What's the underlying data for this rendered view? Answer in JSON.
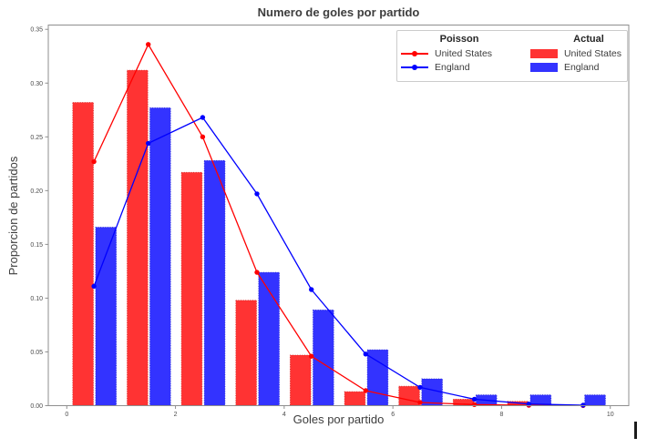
{
  "figure": {
    "title": "Numero de goles por partido",
    "xlabel": "Goles por partido",
    "ylabel": "Proporcion de partidos"
  },
  "chart_data": {
    "type": "bar+line",
    "title": "Numero de goles por partido",
    "xlabel": "Goles por partido",
    "ylabel": "Proporcion de partidos",
    "categories": [
      0,
      1,
      2,
      3,
      4,
      5,
      6,
      7,
      8,
      9
    ],
    "bar_series": [
      {
        "name": "Actual United States",
        "color": "#ff3333",
        "edge_color": "#d42a2a",
        "values": [
          0.282,
          0.312,
          0.217,
          0.098,
          0.047,
          0.013,
          0.018,
          0.006,
          0.004,
          0.0
        ]
      },
      {
        "name": "Actual England",
        "color": "#3333ff",
        "edge_color": "#2a2ad4",
        "values": [
          0.166,
          0.277,
          0.228,
          0.124,
          0.089,
          0.052,
          0.025,
          0.01,
          0.01,
          0.01
        ]
      }
    ],
    "line_series": [
      {
        "name": "Poisson United States",
        "color": "#ff0000",
        "x_offset": 0.5,
        "values": [
          0.227,
          0.336,
          0.25,
          0.124,
          0.046,
          0.014,
          0.003,
          0.001,
          0.0003,
          0.0001
        ]
      },
      {
        "name": "Poisson England",
        "color": "#0000ff",
        "x_offset": 0.5,
        "values": [
          0.111,
          0.244,
          0.268,
          0.197,
          0.108,
          0.048,
          0.017,
          0.006,
          0.0015,
          0.0004
        ]
      }
    ],
    "x_ticks": [
      0,
      2,
      4,
      6,
      8,
      10
    ],
    "y_ticks": [
      "0.00",
      "0.05",
      "0.10",
      "0.15",
      "0.20",
      "0.25",
      "0.30",
      "0.35"
    ],
    "xlim": [
      -0.34,
      10.34
    ],
    "ylim": [
      0,
      0.354
    ],
    "grid": false,
    "legend_position": "upper right",
    "bar_offsets": {
      "red_left": 0.11,
      "red_right": 0.49,
      "blue_left": 0.53,
      "blue_right": 0.91
    }
  },
  "legend": {
    "columns": [
      {
        "header": "Poisson",
        "style": "line",
        "entries": [
          {
            "label": "United States",
            "color": "#ff0000"
          },
          {
            "label": "England",
            "color": "#0000ff"
          }
        ]
      },
      {
        "header": "Actual",
        "style": "patch",
        "entries": [
          {
            "label": "United States",
            "color": "#ff3333"
          },
          {
            "label": "England",
            "color": "#3333ff"
          }
        ]
      }
    ]
  },
  "style": {
    "spine_color": "#8f8f8f",
    "tick_color": "#8f8f8f",
    "tick_label_color": "#4d4d4d",
    "background": "#ffffff"
  }
}
